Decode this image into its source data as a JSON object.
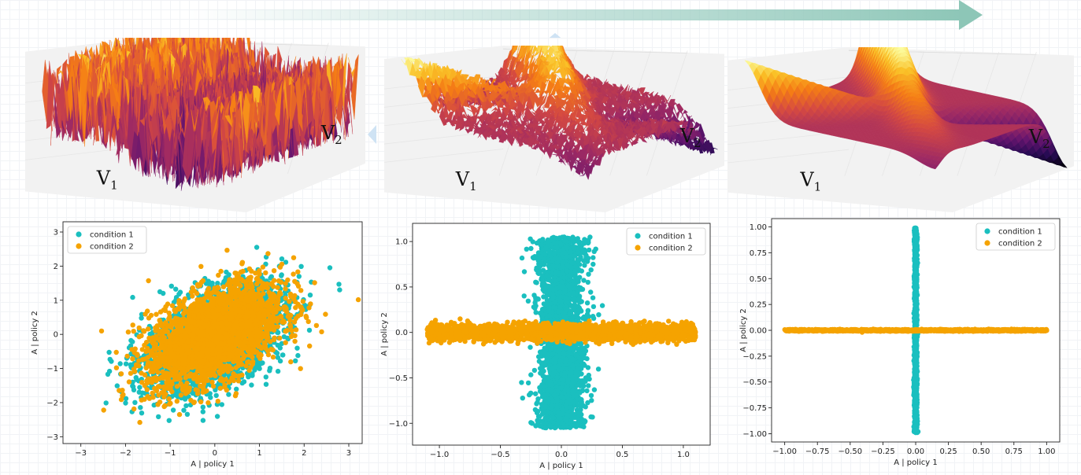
{
  "chart_data": [
    {
      "type": "surface",
      "panel": "noisy",
      "axis_labels": {
        "v1": "V",
        "v1_sub": "1",
        "v2": "V",
        "v2_sub": "2"
      },
      "description_words": [
        "noisy"
      ]
    },
    {
      "type": "surface",
      "panel": "crossing-ridges-noisy",
      "axis_labels": {
        "v1": "V",
        "v1_sub": "1",
        "v2": "V",
        "v2_sub": "2"
      }
    },
    {
      "type": "surface",
      "panel": "crossing-ridges-smooth",
      "axis_labels": {
        "v1": "V",
        "v1_sub": "1",
        "v2": "V",
        "v2_sub": "2"
      }
    },
    {
      "type": "scatter",
      "xlabel": "A | policy 1",
      "ylabel": "A | policy 2",
      "xlim": [
        -3.4,
        3.3
      ],
      "ylim": [
        -3.2,
        3.3
      ],
      "xticks": [
        -3,
        -2,
        -1,
        0,
        1,
        2,
        3
      ],
      "yticks": [
        -3,
        -2,
        -1,
        0,
        1,
        2,
        3
      ],
      "xtick_labels": [
        "−3",
        "−2",
        "−1",
        "0",
        "1",
        "2",
        "3"
      ],
      "ytick_labels": [
        "−3",
        "−2",
        "−1",
        "0",
        "1",
        "2",
        "3"
      ],
      "legend_position": "top-left",
      "series": [
        {
          "name": "condition 1",
          "color": "#1abfbf",
          "distribution": "correlated gaussian",
          "sd_x": 0.78,
          "sd_y": 0.78,
          "corr": 0.5
        },
        {
          "name": "condition 2",
          "color": "#f5a300",
          "distribution": "correlated gaussian",
          "sd_x": 0.75,
          "sd_y": 0.75,
          "corr": 0.5
        }
      ]
    },
    {
      "type": "scatter",
      "xlabel": "A | policy 1",
      "ylabel": "A | policy 2",
      "xlim": [
        -1.22,
        1.22
      ],
      "ylim": [
        -1.24,
        1.2
      ],
      "xticks": [
        -1.0,
        -0.5,
        0.0,
        0.5,
        1.0
      ],
      "yticks": [
        -1.0,
        -0.5,
        0.0,
        0.5,
        1.0
      ],
      "xtick_labels": [
        "−1.0",
        "−0.5",
        "0.0",
        "0.5",
        "1.0"
      ],
      "ytick_labels": [
        "−1.0",
        "−0.5",
        "0.0",
        "0.5",
        "1.0"
      ],
      "legend_position": "top-right",
      "series": [
        {
          "name": "condition 1",
          "color": "#1abfbf",
          "distribution": "vertical band",
          "x_range": [
            -0.22,
            0.22
          ],
          "y_range": [
            -1.1,
            1.1
          ]
        },
        {
          "name": "condition 2",
          "color": "#f5a300",
          "distribution": "horizontal band",
          "x_range": [
            -1.12,
            1.12
          ],
          "y_range": [
            -0.12,
            0.12
          ]
        }
      ]
    },
    {
      "type": "scatter",
      "xlabel": "A | policy 1",
      "ylabel": "A | policy 2",
      "xlim": [
        -1.1,
        1.1
      ],
      "ylim": [
        -1.08,
        1.08
      ],
      "xticks": [
        -1.0,
        -0.75,
        -0.5,
        -0.25,
        0.0,
        0.25,
        0.5,
        0.75,
        1.0
      ],
      "yticks": [
        -1.0,
        -0.75,
        -0.5,
        -0.25,
        0.0,
        0.25,
        0.5,
        0.75,
        1.0
      ],
      "xtick_labels": [
        "−1.00",
        "−0.75",
        "−0.50",
        "−0.25",
        "0.00",
        "0.25",
        "0.50",
        "0.75",
        "1.00"
      ],
      "ytick_labels": [
        "−1.00",
        "−0.75",
        "−0.50",
        "−0.25",
        "0.00",
        "0.25",
        "0.50",
        "0.75",
        "1.00"
      ],
      "legend_position": "top-right",
      "series": [
        {
          "name": "condition 1",
          "color": "#1abfbf",
          "distribution": "vertical line",
          "x_range": [
            -0.02,
            0.02
          ],
          "y_range": [
            -1.0,
            1.0
          ]
        },
        {
          "name": "condition 2",
          "color": "#f5a300",
          "distribution": "horizontal line",
          "x_range": [
            -1.0,
            1.0
          ],
          "y_range": [
            -0.02,
            0.02
          ]
        }
      ]
    }
  ]
}
